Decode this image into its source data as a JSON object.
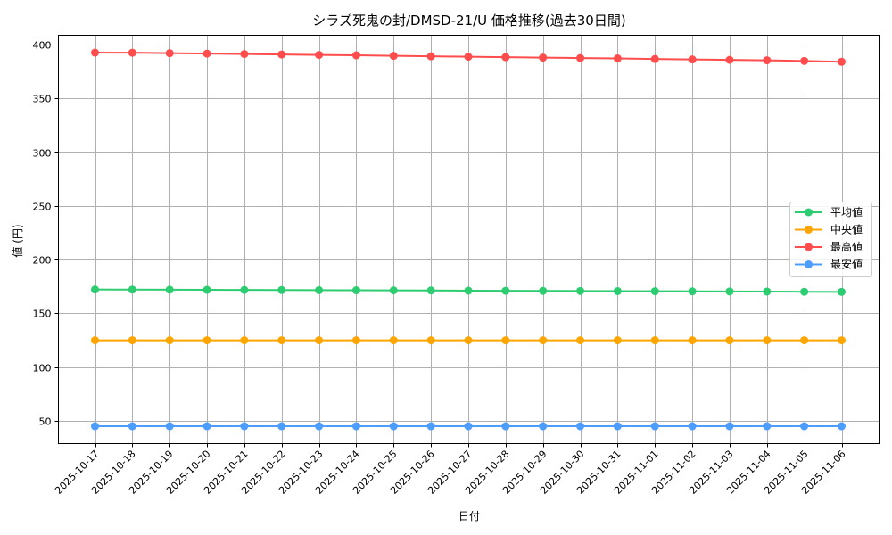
{
  "chart_data": {
    "type": "line",
    "title": "シラズ死鬼の封/DMSD-21/U 価格推移(過去30日間)",
    "xlabel": "日付",
    "ylabel": "値 (円)",
    "ylim": [
      28,
      410
    ],
    "yticks": [
      50,
      100,
      150,
      200,
      250,
      300,
      350,
      400
    ],
    "grid": true,
    "legend_position": "center right",
    "categories": [
      "2025-10-17",
      "2025-10-18",
      "2025-10-19",
      "2025-10-20",
      "2025-10-21",
      "2025-10-22",
      "2025-10-23",
      "2025-10-24",
      "2025-10-25",
      "2025-10-26",
      "2025-10-27",
      "2025-10-28",
      "2025-10-29",
      "2025-10-30",
      "2025-10-31",
      "2025-11-01",
      "2025-11-02",
      "2025-11-03",
      "2025-11-04",
      "2025-11-05",
      "2025-11-06"
    ],
    "series": [
      {
        "name": "平均値",
        "color": "#2ecc71",
        "values": [
          172.2,
          172.1,
          172.0,
          171.9,
          171.8,
          171.7,
          171.6,
          171.5,
          171.4,
          171.3,
          171.1,
          171.0,
          170.9,
          170.8,
          170.7,
          170.6,
          170.5,
          170.4,
          170.3,
          170.1,
          170.0
        ]
      },
      {
        "name": "中央値",
        "color": "#ffa500",
        "values": [
          125,
          125,
          125,
          125,
          125,
          125,
          125,
          125,
          125,
          125,
          125,
          125,
          125,
          125,
          125,
          125,
          125,
          125,
          125,
          125,
          125
        ]
      },
      {
        "name": "最高値",
        "color": "#ff4d4d",
        "values": [
          392.5,
          392.4,
          392.0,
          391.6,
          391.2,
          390.8,
          390.4,
          390.0,
          389.5,
          389.1,
          388.7,
          388.3,
          387.9,
          387.5,
          387.1,
          386.6,
          386.2,
          385.8,
          385.4,
          384.8,
          384.0
        ]
      },
      {
        "name": "最安値",
        "color": "#4d9dff",
        "values": [
          45,
          45,
          45,
          45,
          45,
          45,
          45,
          45,
          45,
          45,
          45,
          45,
          45,
          45,
          45,
          45,
          45,
          45,
          45,
          45,
          45
        ]
      }
    ]
  }
}
